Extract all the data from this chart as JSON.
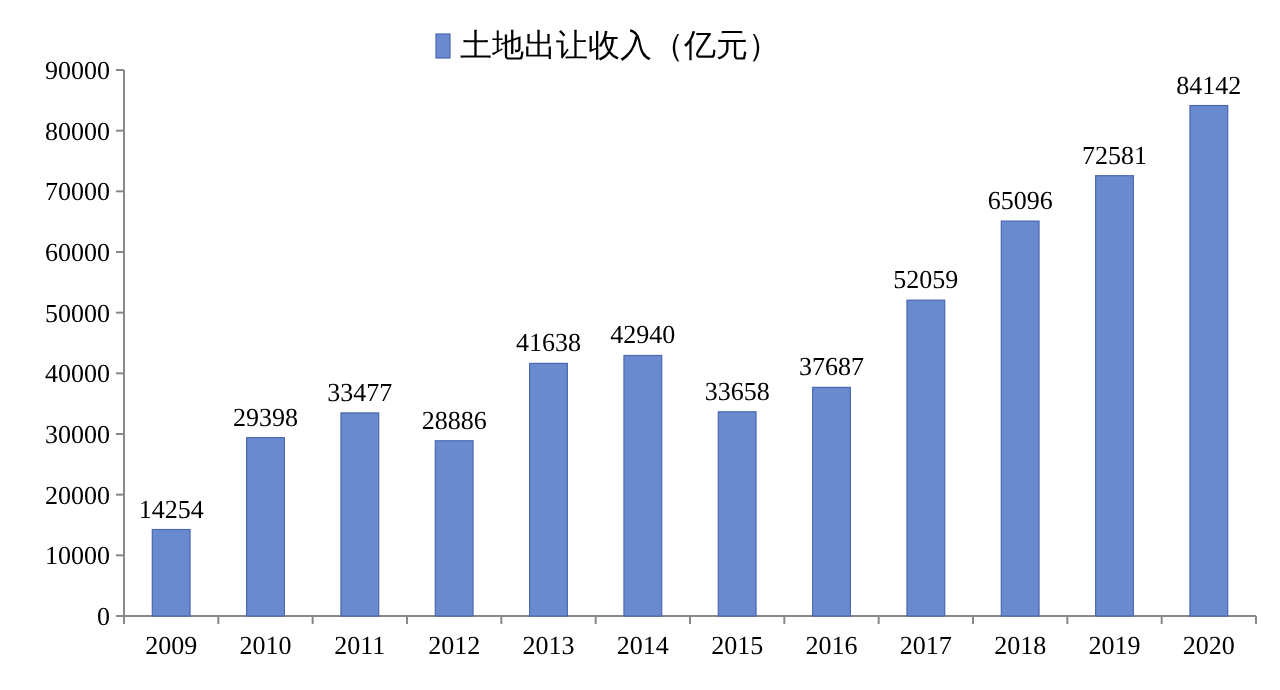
{
  "chart_data": {
    "type": "bar",
    "categories": [
      "2009",
      "2010",
      "2011",
      "2012",
      "2013",
      "2014",
      "2015",
      "2016",
      "2017",
      "2018",
      "2019",
      "2020"
    ],
    "series": [
      {
        "name": "土地出让收入（亿元）",
        "color": "#6a8ad0",
        "values": [
          14254,
          29398,
          33477,
          28886,
          41638,
          42940,
          33658,
          37687,
          52059,
          65096,
          72581,
          84142
        ]
      }
    ],
    "ylim": [
      0,
      90000
    ],
    "yticks": [
      0,
      10000,
      20000,
      30000,
      40000,
      50000,
      60000,
      70000,
      80000,
      90000
    ],
    "data_labels": true,
    "legend": "top"
  }
}
